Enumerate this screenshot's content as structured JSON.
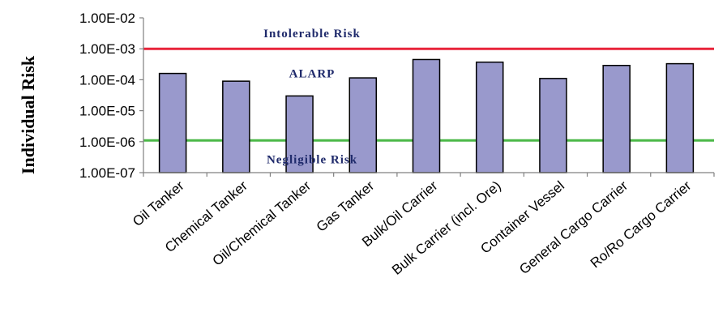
{
  "chart_data": {
    "type": "bar",
    "title": "",
    "xlabel": "",
    "ylabel": "Individual Risk",
    "yscale": "log",
    "ylim": [
      1e-07,
      0.01
    ],
    "yticks": [
      1e-07,
      1e-06,
      1e-05,
      0.0001,
      0.001,
      0.01
    ],
    "ytick_labels": [
      "1.00E-07",
      "1.00E-06",
      "1.00E-05",
      "1.00E-04",
      "1.00E-03",
      "1.00E-02"
    ],
    "grid": false,
    "categories": [
      "Oil Tanker",
      "Chemical Tanker",
      "Oil/Chemical Tanker",
      "Gas Tanker",
      "Bulk/Oil Carrier",
      "Bulk Carrier (incl. Ore)",
      "Container Vessel",
      "General Cargo Carrier",
      "Ro/Ro Cargo Carrier"
    ],
    "values": [
      0.00016,
      9e-05,
      3e-05,
      0.000115,
      0.00045,
      0.00037,
      0.00011,
      0.00029,
      0.00033
    ],
    "bar_color": "#9999cc",
    "reference_lines": [
      {
        "value": 0.001,
        "color": "#e8243a"
      },
      {
        "value": 1.1e-06,
        "color": "#4cb848"
      }
    ],
    "annotations": [
      {
        "text": "Intolerable Risk",
        "value": 0.0032,
        "color": "#1f2a6b"
      },
      {
        "text": "ALARP",
        "value": 0.00016,
        "color": "#1f2a6b"
      },
      {
        "text": "Negligible Risk",
        "value": 2.7e-07,
        "color": "#1f2a6b"
      }
    ]
  }
}
